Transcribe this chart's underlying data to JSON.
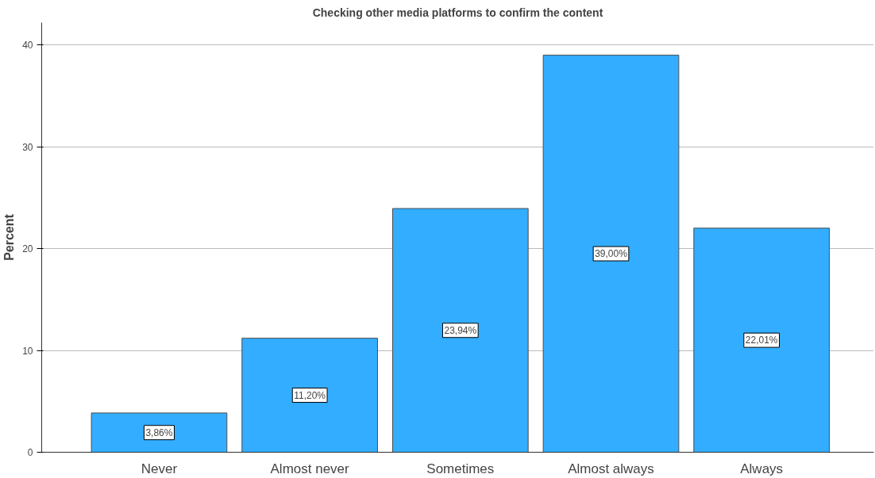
{
  "chart_data": {
    "type": "bar",
    "title": "Checking other media platforms to confirm the content",
    "ylabel": "Percent",
    "categories": [
      "Never",
      "Almost never",
      "Sometimes",
      "Almost always",
      "Always"
    ],
    "values": [
      3.86,
      11.2,
      23.94,
      39.0,
      22.01
    ],
    "value_labels": [
      "3,86%",
      "11,20%",
      "23,94%",
      "39,00%",
      "22,01%"
    ],
    "color": "#33adff",
    "ylim": [
      0,
      42.2
    ],
    "yticks": [
      0,
      10,
      20,
      30,
      40
    ],
    "grid": "y"
  }
}
